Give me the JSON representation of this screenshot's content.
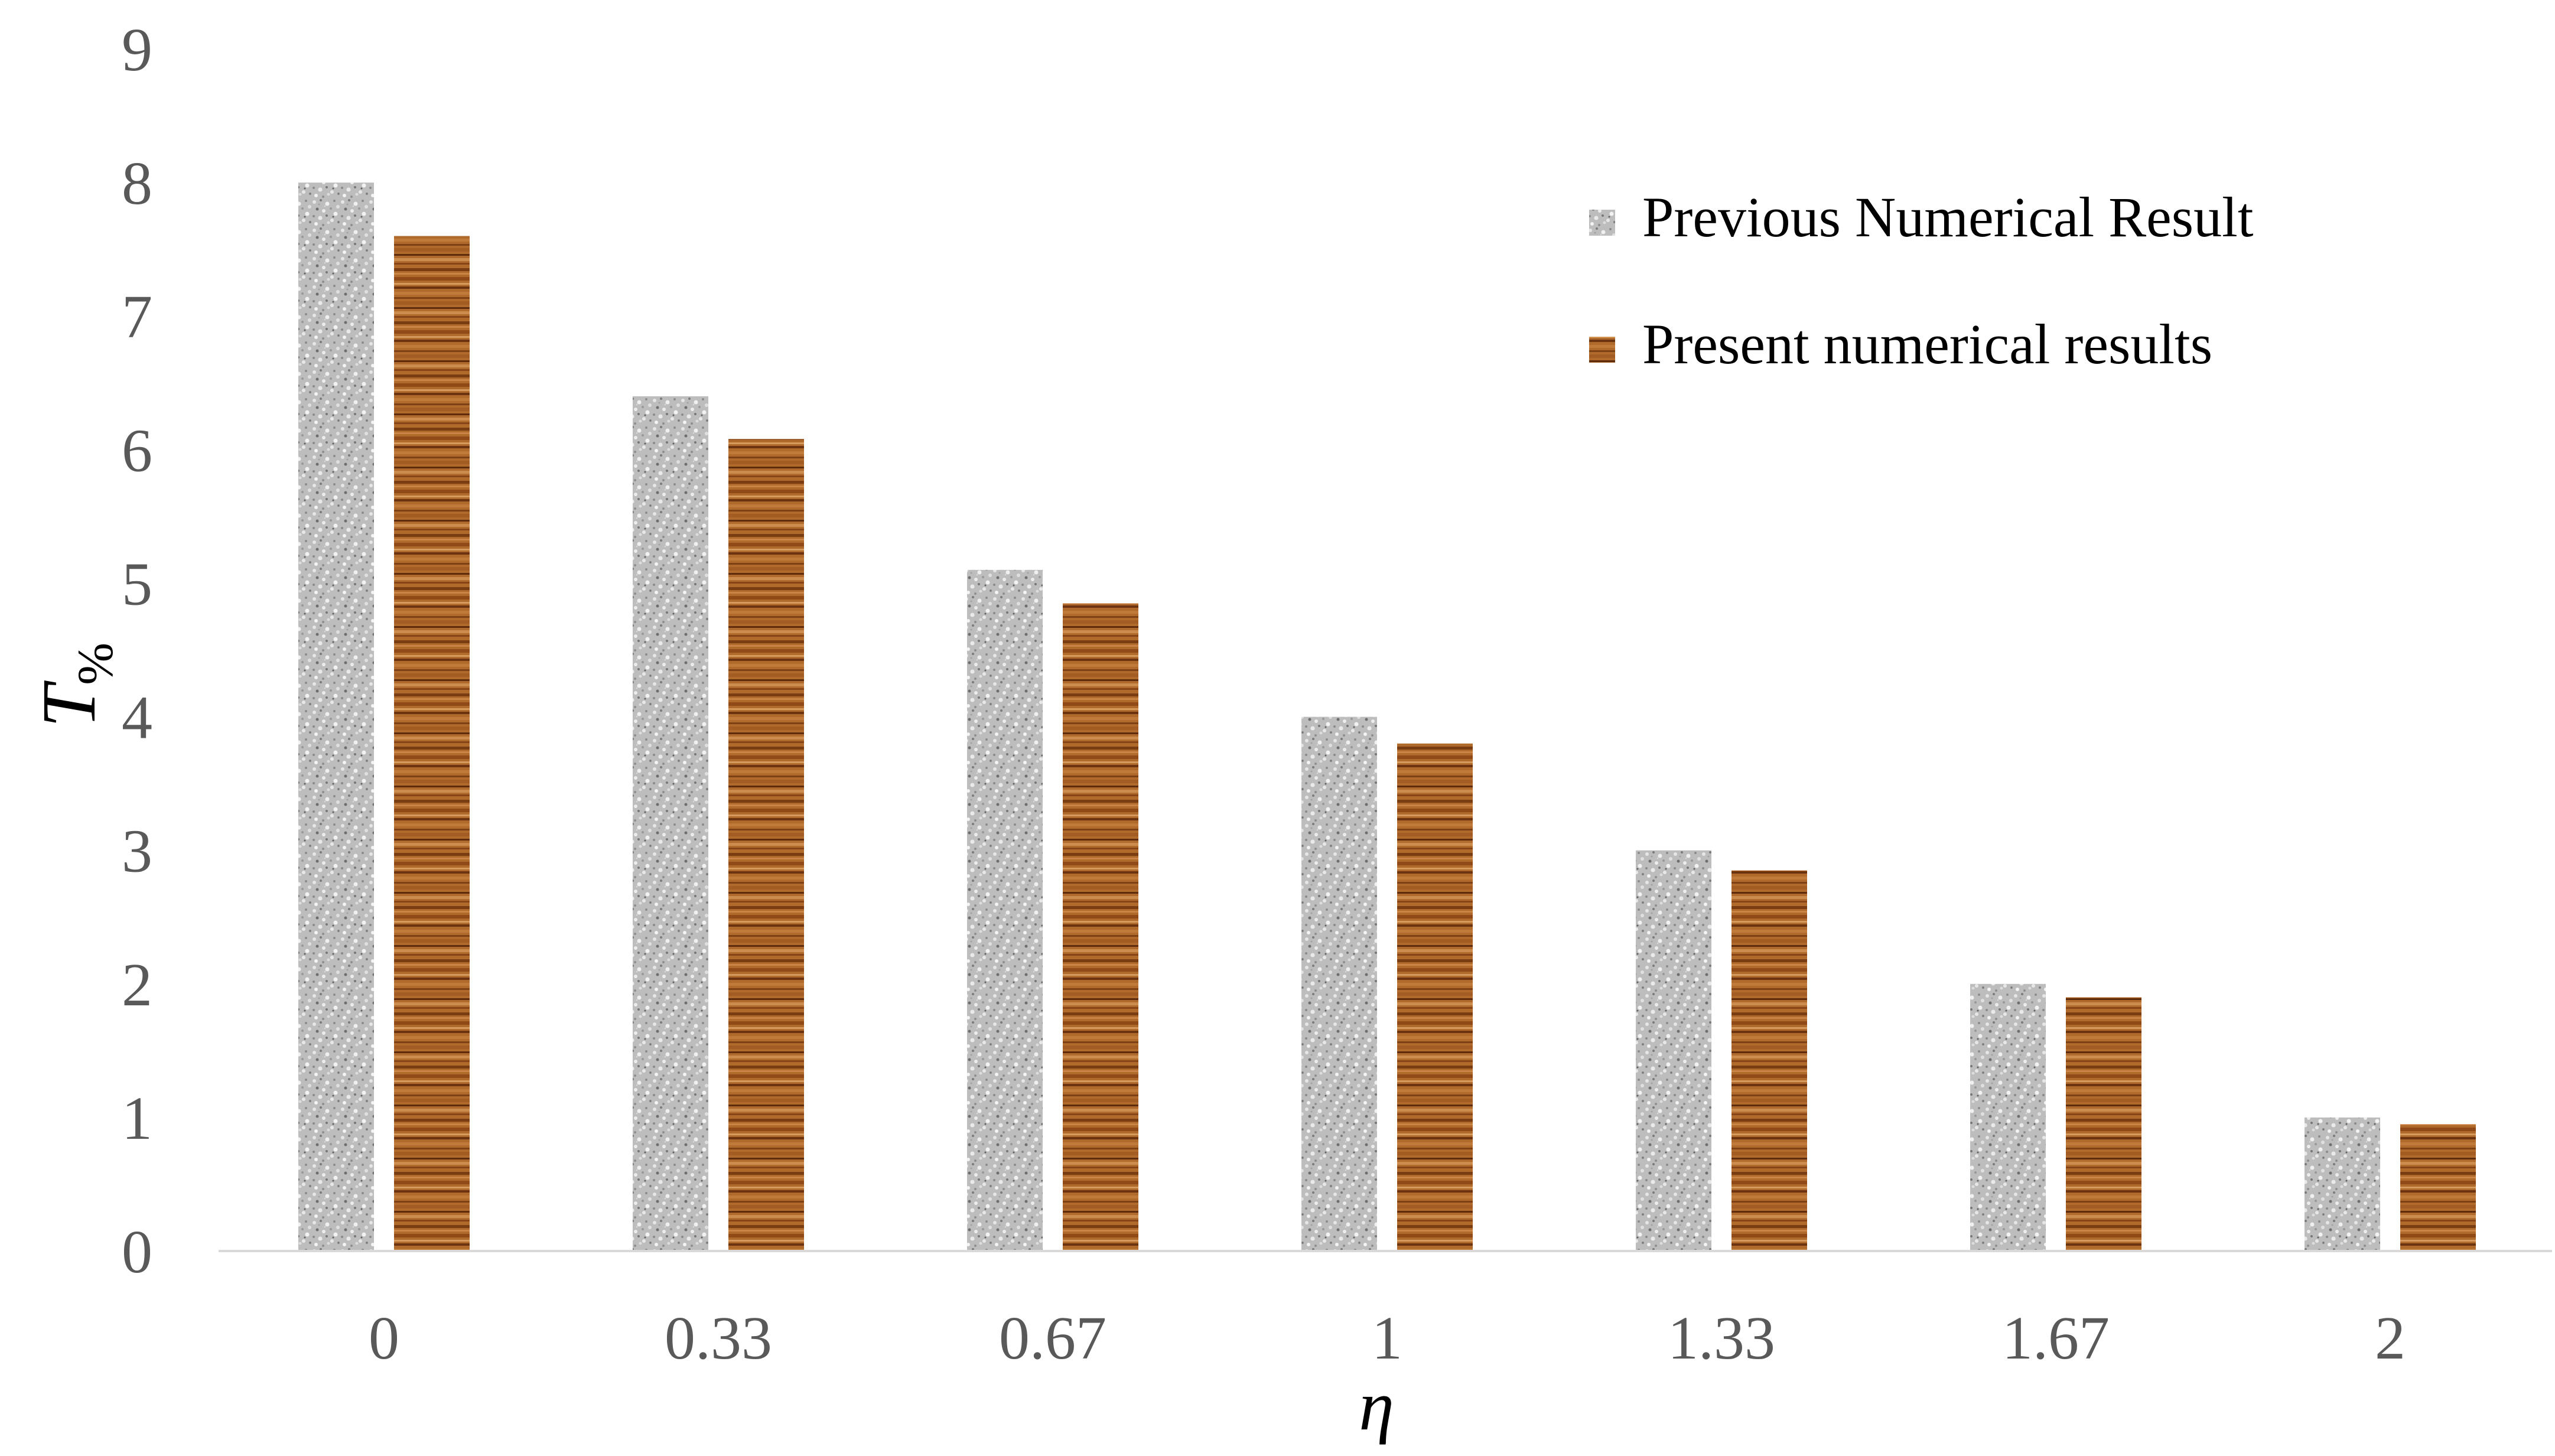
{
  "chart_data": {
    "type": "bar",
    "categories": [
      "0",
      "0.33",
      "0.67",
      "1",
      "1.33",
      "1.67",
      "2"
    ],
    "series": [
      {
        "name": "Previous Numerical Result",
        "values": [
          8.0,
          6.4,
          5.1,
          4.0,
          3.0,
          2.0,
          1.0
        ],
        "color": "#b9b9b9",
        "pattern": "granite-speckle"
      },
      {
        "name": "Present numerical results",
        "values": [
          7.6,
          6.08,
          4.85,
          3.8,
          2.85,
          1.9,
          0.95
        ],
        "color": "#a65a20",
        "pattern": "wood-grain"
      }
    ],
    "xlabel": "η",
    "ylabel": "T",
    "ylabel_subscript": "%",
    "ylim": [
      0,
      9
    ],
    "yticks": [
      "0",
      "1",
      "2",
      "3",
      "4",
      "5",
      "6",
      "7",
      "8",
      "9"
    ],
    "grid": false,
    "legend_position": "top-right",
    "colors": {
      "axis_line": "#d9d9d9",
      "tick_text": "#595959",
      "label_text": "#000000",
      "legend_text": "#000000"
    }
  }
}
